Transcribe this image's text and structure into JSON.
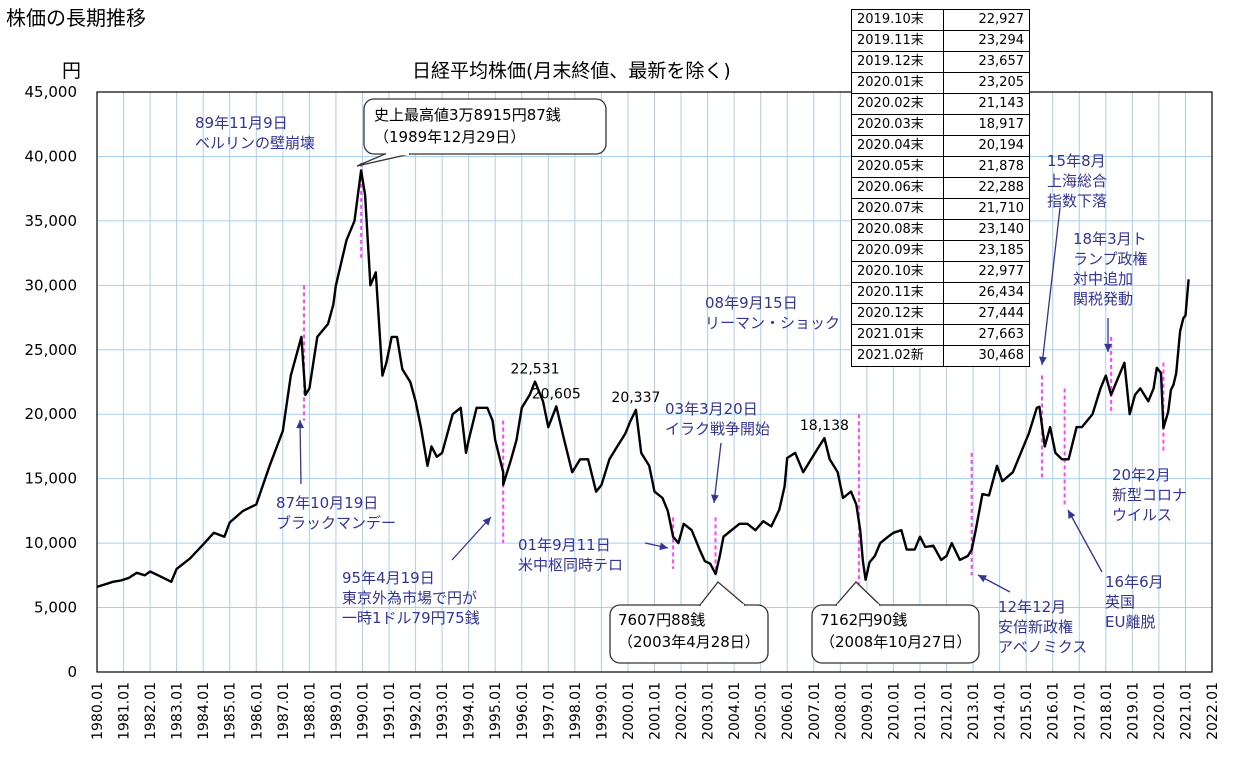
{
  "page_title": "株価の長期推移",
  "chart_data": {
    "type": "line",
    "title": "日経平均株価(月末終値、最新を除く)",
    "ylabel": "円",
    "ylim": [
      0,
      45000
    ],
    "yticks": [
      "0",
      "5,000",
      "10,000",
      "15,000",
      "20,000",
      "25,000",
      "30,000",
      "35,000",
      "40,000",
      "45,000"
    ],
    "xticks": [
      "1980.01",
      "1981.01",
      "1982.01",
      "1983.01",
      "1984.01",
      "1985.01",
      "1986.01",
      "1987.01",
      "1988.01",
      "1989.01",
      "1990.01",
      "1991.01",
      "1992.01",
      "1993.01",
      "1994.01",
      "1995.01",
      "1996.01",
      "1997.01",
      "1998.01",
      "1999.01",
      "2000.01",
      "2001.01",
      "2002.01",
      "2003.01",
      "2004.01",
      "2005.01",
      "2006.01",
      "2007.01",
      "2008.01",
      "2009.01",
      "2010.01",
      "2011.01",
      "2012.01",
      "2013.01",
      "2014.01",
      "2015.01",
      "2016.01",
      "2017.01",
      "2018.01",
      "2019.01",
      "2020.01",
      "2021.01",
      "2022.01"
    ],
    "grid": true,
    "series": [
      {
        "values": [
          [
            1980.0,
            6600
          ],
          [
            1980.3,
            6800
          ],
          [
            1980.6,
            7000
          ],
          [
            1980.9,
            7100
          ],
          [
            1981.2,
            7300
          ],
          [
            1981.5,
            7700
          ],
          [
            1981.8,
            7500
          ],
          [
            1982.0,
            7800
          ],
          [
            1982.4,
            7400
          ],
          [
            1982.8,
            7000
          ],
          [
            1983.0,
            8000
          ],
          [
            1983.5,
            8800
          ],
          [
            1984.0,
            9900
          ],
          [
            1984.4,
            10800
          ],
          [
            1984.8,
            10500
          ],
          [
            1985.0,
            11600
          ],
          [
            1985.5,
            12500
          ],
          [
            1986.0,
            13000
          ],
          [
            1986.5,
            16000
          ],
          [
            1987.0,
            18700
          ],
          [
            1987.3,
            23000
          ],
          [
            1987.7,
            26000
          ],
          [
            1987.85,
            21500
          ],
          [
            1988.0,
            22000
          ],
          [
            1988.3,
            26000
          ],
          [
            1988.7,
            27000
          ],
          [
            1988.9,
            28500
          ],
          [
            1989.0,
            30000
          ],
          [
            1989.4,
            33500
          ],
          [
            1989.7,
            35000
          ],
          [
            1989.95,
            38915
          ],
          [
            1990.1,
            37000
          ],
          [
            1990.3,
            30000
          ],
          [
            1990.5,
            31000
          ],
          [
            1990.75,
            23000
          ],
          [
            1990.9,
            24000
          ],
          [
            1991.1,
            26000
          ],
          [
            1991.3,
            26000
          ],
          [
            1991.5,
            23500
          ],
          [
            1991.8,
            22500
          ],
          [
            1992.0,
            21000
          ],
          [
            1992.2,
            19000
          ],
          [
            1992.45,
            16000
          ],
          [
            1992.6,
            17500
          ],
          [
            1992.8,
            16700
          ],
          [
            1993.0,
            17000
          ],
          [
            1993.4,
            20000
          ],
          [
            1993.7,
            20500
          ],
          [
            1993.9,
            17000
          ],
          [
            1994.0,
            18000
          ],
          [
            1994.3,
            20500
          ],
          [
            1994.7,
            20500
          ],
          [
            1994.9,
            19500
          ],
          [
            1995.0,
            18000
          ],
          [
            1995.3,
            15500
          ],
          [
            1995.3,
            14517
          ],
          [
            1995.6,
            16500
          ],
          [
            1995.8,
            18000
          ],
          [
            1996.0,
            20500
          ],
          [
            1996.3,
            21500
          ],
          [
            1996.5,
            22531
          ],
          [
            1996.8,
            21000
          ],
          [
            1997.0,
            19000
          ],
          [
            1997.3,
            20605
          ],
          [
            1997.6,
            18000
          ],
          [
            1997.9,
            15500
          ],
          [
            1998.2,
            16500
          ],
          [
            1998.5,
            16500
          ],
          [
            1998.8,
            14000
          ],
          [
            1999.0,
            14500
          ],
          [
            1999.3,
            16500
          ],
          [
            1999.6,
            17500
          ],
          [
            1999.9,
            18500
          ],
          [
            2000.1,
            19500
          ],
          [
            2000.3,
            20337
          ],
          [
            2000.5,
            17000
          ],
          [
            2000.8,
            16000
          ],
          [
            2001.0,
            14000
          ],
          [
            2001.3,
            13500
          ],
          [
            2001.5,
            12500
          ],
          [
            2001.7,
            10500
          ],
          [
            2001.9,
            10000
          ],
          [
            2002.1,
            11500
          ],
          [
            2002.4,
            11000
          ],
          [
            2002.7,
            9500
          ],
          [
            2002.9,
            8600
          ],
          [
            2003.1,
            8400
          ],
          [
            2003.3,
            7607
          ],
          [
            2003.45,
            8900
          ],
          [
            2003.6,
            10500
          ],
          [
            2003.9,
            11000
          ],
          [
            2004.2,
            11500
          ],
          [
            2004.5,
            11500
          ],
          [
            2004.8,
            11000
          ],
          [
            2005.1,
            11700
          ],
          [
            2005.4,
            11300
          ],
          [
            2005.7,
            12600
          ],
          [
            2005.9,
            14400
          ],
          [
            2006.0,
            16600
          ],
          [
            2006.3,
            17000
          ],
          [
            2006.6,
            15500
          ],
          [
            2006.9,
            16500
          ],
          [
            2007.2,
            17500
          ],
          [
            2007.4,
            18138
          ],
          [
            2007.6,
            16500
          ],
          [
            2007.9,
            15500
          ],
          [
            2008.1,
            13500
          ],
          [
            2008.4,
            14000
          ],
          [
            2008.6,
            13000
          ],
          [
            2008.75,
            11000
          ],
          [
            2008.85,
            8600
          ],
          [
            2008.95,
            7162
          ],
          [
            2009.1,
            8500
          ],
          [
            2009.3,
            9000
          ],
          [
            2009.5,
            10000
          ],
          [
            2009.8,
            10500
          ],
          [
            2010.0,
            10800
          ],
          [
            2010.3,
            11000
          ],
          [
            2010.5,
            9500
          ],
          [
            2010.8,
            9500
          ],
          [
            2011.0,
            10500
          ],
          [
            2011.2,
            9700
          ],
          [
            2011.5,
            9800
          ],
          [
            2011.8,
            8700
          ],
          [
            2012.0,
            9000
          ],
          [
            2012.2,
            10000
          ],
          [
            2012.5,
            8700
          ],
          [
            2012.8,
            9000
          ],
          [
            2012.95,
            9500
          ],
          [
            2013.1,
            11000
          ],
          [
            2013.35,
            13800
          ],
          [
            2013.6,
            13700
          ],
          [
            2013.9,
            16000
          ],
          [
            2014.1,
            14800
          ],
          [
            2014.5,
            15500
          ],
          [
            2014.9,
            17500
          ],
          [
            2015.1,
            18500
          ],
          [
            2015.4,
            20500
          ],
          [
            2015.5,
            20585
          ],
          [
            2015.7,
            17500
          ],
          [
            2015.9,
            19000
          ],
          [
            2016.1,
            17000
          ],
          [
            2016.35,
            16500
          ],
          [
            2016.6,
            16500
          ],
          [
            2016.9,
            19000
          ],
          [
            2017.1,
            19000
          ],
          [
            2017.5,
            20000
          ],
          [
            2017.8,
            22000
          ],
          [
            2018.0,
            23000
          ],
          [
            2018.2,
            21500
          ],
          [
            2018.4,
            22500
          ],
          [
            2018.7,
            24000
          ],
          [
            2018.9,
            20000
          ],
          [
            2019.1,
            21500
          ],
          [
            2019.3,
            22000
          ],
          [
            2019.6,
            21000
          ],
          [
            2019.8,
            22000
          ],
          [
            2019.92,
            23600
          ],
          [
            2020.08,
            23200
          ],
          [
            2020.17,
            18917
          ],
          [
            2020.35,
            20194
          ],
          [
            2020.45,
            21878
          ],
          [
            2020.55,
            22288
          ],
          [
            2020.65,
            23185
          ],
          [
            2020.8,
            26434
          ],
          [
            2020.92,
            27444
          ],
          [
            2021.0,
            27663
          ],
          [
            2021.12,
            30468
          ]
        ]
      }
    ],
    "peak_labels": [
      {
        "x": 1996.5,
        "y": 22531,
        "text": "22,531"
      },
      {
        "x": 1997.3,
        "y": 20605,
        "text": "20,605"
      },
      {
        "x": 2000.3,
        "y": 20337,
        "text": "20,337"
      },
      {
        "x": 2007.4,
        "y": 18138,
        "text": "18,138"
      }
    ],
    "events": [
      {
        "x": 1987.8,
        "lo": 19500,
        "hi": 30000
      },
      {
        "x": 1989.95,
        "lo": 32000,
        "hi": 39500
      },
      {
        "x": 1995.3,
        "lo": 10000,
        "hi": 19500
      },
      {
        "x": 2001.7,
        "lo": 8000,
        "hi": 12000
      },
      {
        "x": 2003.3,
        "lo": 8000,
        "hi": 12000
      },
      {
        "x": 2008.7,
        "lo": 6500,
        "hi": 20000
      },
      {
        "x": 2012.95,
        "lo": 7500,
        "hi": 17000
      },
      {
        "x": 2015.6,
        "lo": 15000,
        "hi": 23000
      },
      {
        "x": 2016.45,
        "lo": 13000,
        "hi": 22000
      },
      {
        "x": 2018.2,
        "lo": 20000,
        "hi": 26000
      },
      {
        "x": 2020.17,
        "lo": 17000,
        "hi": 24000
      }
    ],
    "annotations": [
      {
        "lines": [
          "89年11月9日",
          "ベルリンの壁崩壊"
        ],
        "color": "#333399"
      },
      {
        "lines": [
          "史上最高値3万8915円87銭",
          "（1989年12月29日）"
        ],
        "color": "#000000",
        "boxed": true
      },
      {
        "lines": [
          "87年10月19日",
          "ブラックマンデー"
        ],
        "color": "#333399"
      },
      {
        "lines": [
          "95年4月19日",
          "東京外為市場で円が",
          "一時1ドル79円75銭"
        ],
        "color": "#333399"
      },
      {
        "lines": [
          "01年9月11日",
          "米中枢同時テロ"
        ],
        "color": "#333399"
      },
      {
        "lines": [
          "03年3月20日",
          "イラク戦争開始"
        ],
        "color": "#333399"
      },
      {
        "lines": [
          "7607円88銭",
          "（2003年4月28日）"
        ],
        "color": "#000000",
        "boxed": true
      },
      {
        "lines": [
          "08年9月15日",
          "リーマン・ショック"
        ],
        "color": "#333399"
      },
      {
        "lines": [
          "7162円90銭",
          "（2008年10月27日）"
        ],
        "color": "#000000",
        "boxed": true
      },
      {
        "lines": [
          "12年12月",
          "安倍新政権",
          "アベノミクス"
        ],
        "color": "#333399"
      },
      {
        "lines": [
          "15年8月",
          "上海総合",
          "指数下落"
        ],
        "color": "#333399"
      },
      {
        "lines": [
          "18年3月ト",
          "ランプ政権",
          "対中追加",
          "関税発動"
        ],
        "color": "#333399"
      },
      {
        "lines": [
          "20年2月",
          "新型コロナ",
          "ウイルス"
        ],
        "color": "#333399"
      },
      {
        "lines": [
          "16年6月",
          "英国",
          "EU離脱"
        ],
        "color": "#333399"
      }
    ],
    "table": [
      [
        "2019.10末",
        "22,927"
      ],
      [
        "2019.11末",
        "23,294"
      ],
      [
        "2019.12末",
        "23,657"
      ],
      [
        "2020.01末",
        "23,205"
      ],
      [
        "2020.02末",
        "21,143"
      ],
      [
        "2020.03末",
        "18,917"
      ],
      [
        "2020.04末",
        "20,194"
      ],
      [
        "2020.05末",
        "21,878"
      ],
      [
        "2020.06末",
        "22,288"
      ],
      [
        "2020.07末",
        "21,710"
      ],
      [
        "2020.08末",
        "23,140"
      ],
      [
        "2020.09末",
        "23,185"
      ],
      [
        "2020.10末",
        "22,977"
      ],
      [
        "2020.11末",
        "26,434"
      ],
      [
        "2020.12末",
        "27,444"
      ],
      [
        "2021.01末",
        "27,663"
      ],
      [
        "2021.02新",
        "30,468"
      ]
    ],
    "colors": {
      "line": "#000000",
      "grid": "#a8d0ee",
      "event": "#ff44ff",
      "annotation": "#333399",
      "axis": "#000000"
    }
  }
}
